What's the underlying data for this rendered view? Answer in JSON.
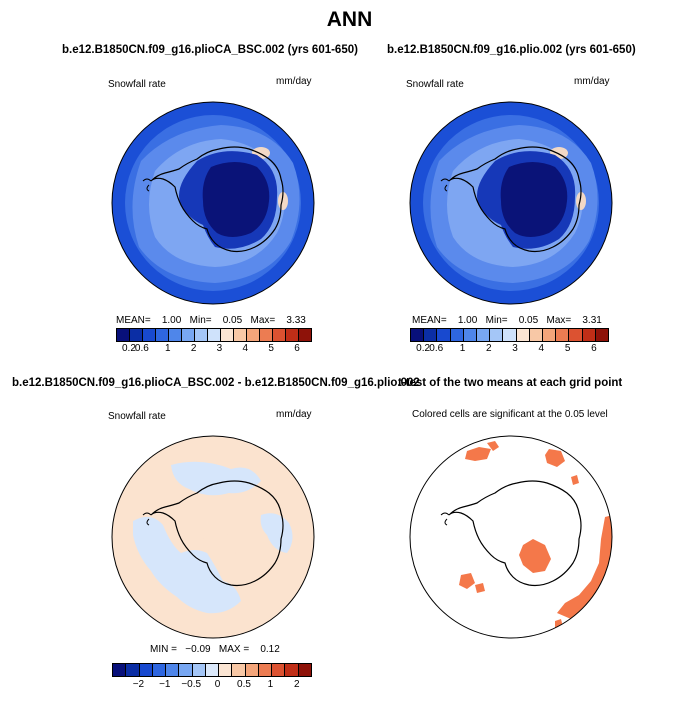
{
  "title": "ANN",
  "panels": {
    "p1": {
      "title": "b.e12.B1850CN.f09_g16.plioCA_BSC.002 (yrs 601-650)",
      "variable": "Snowfall rate",
      "units": "mm/day",
      "stats": "MEAN=    1.00   Min=    0.05   Max=    3.33"
    },
    "p2": {
      "title": "b.e12.B1850CN.f09_g16.plio.002 (yrs 601-650)",
      "variable": "Snowfall rate",
      "units": "mm/day",
      "stats": "MEAN=    1.00   Min=    0.05   Max=    3.31"
    },
    "p3": {
      "title": "b.e12.B1850CN.f09_g16.plioCA_BSC.002 - b.e12.B1850CN.f09_g16.plio.002",
      "variable": "Snowfall rate",
      "units": "mm/day",
      "stats": "MIN =   −0.09   MAX =    0.12"
    },
    "p4": {
      "title": "t-test of the two means at each grid point",
      "subtitle": "Colored cells are significant at the 0.05 level"
    }
  },
  "colorbars": {
    "abs": {
      "colors": [
        "#08107a",
        "#0b2ea5",
        "#1849cf",
        "#2e66e0",
        "#4f86ea",
        "#78a7f2",
        "#a4c6f7",
        "#cfe2fb",
        "#fbe5d3",
        "#f8c8a6",
        "#f4a57a",
        "#ec7c52",
        "#dc5231",
        "#c02e17",
        "#8e1209"
      ],
      "ticks": [
        {
          "label": "0.2",
          "frac": 0.0667
        },
        {
          "label": "0.6",
          "frac": 0.1333
        },
        {
          "label": "1",
          "frac": 0.2667
        },
        {
          "label": "2",
          "frac": 0.4
        },
        {
          "label": "3",
          "frac": 0.5333
        },
        {
          "label": "4",
          "frac": 0.6667
        },
        {
          "label": "5",
          "frac": 0.8
        },
        {
          "label": "6",
          "frac": 0.9333
        }
      ]
    },
    "diff": {
      "colors": [
        "#08107a",
        "#0b2ea5",
        "#1849cf",
        "#2e66e0",
        "#4f86ea",
        "#78a7f2",
        "#a4c6f7",
        "#dce9fb",
        "#fbe5d3",
        "#f8c8a6",
        "#f4a57a",
        "#ec7c52",
        "#dc5231",
        "#c02e17",
        "#8e1209"
      ],
      "ticks": [
        {
          "label": "−2",
          "frac": 0.1333
        },
        {
          "label": "−1",
          "frac": 0.2667
        },
        {
          "label": "−0.5",
          "frac": 0.4
        },
        {
          "label": "0",
          "frac": 0.5333
        },
        {
          "label": "0.5",
          "frac": 0.6667
        },
        {
          "label": "1",
          "frac": 0.8
        },
        {
          "label": "2",
          "frac": 0.9333
        }
      ]
    }
  },
  "colors": {
    "ocean_outer": "#1b4fd6",
    "ocean_mid": "#3f74e4",
    "ocean_inner": "#6b98ee",
    "coast": "#a8c7f5",
    "plateau": "#0a1378",
    "plateau_edge": "#1638b8",
    "diff_pos": "#fbe3cf",
    "diff_neg": "#d6e6fb",
    "signif": "#f4784a"
  }
}
